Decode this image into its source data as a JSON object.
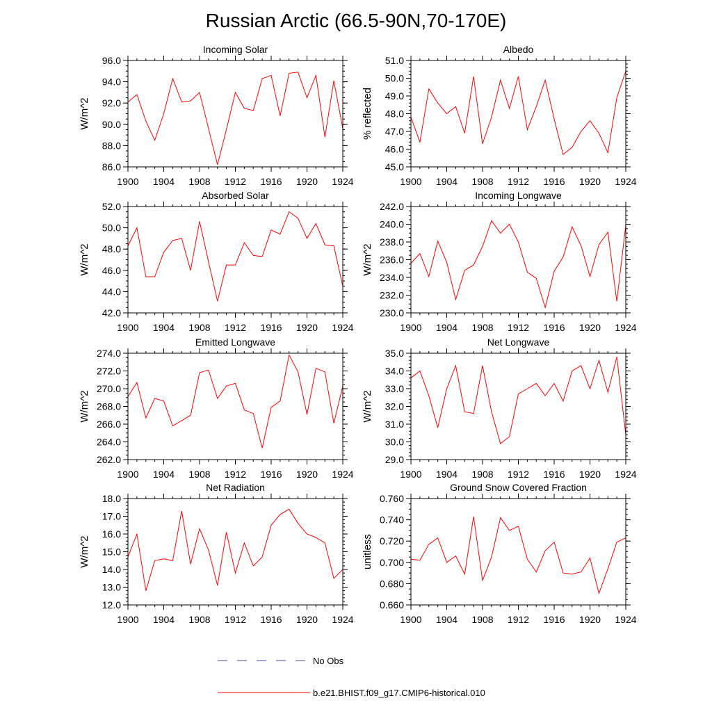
{
  "title": "Russian Arctic (66.5-90N,70-170E)",
  "legend": {
    "no_obs_label": "No Obs",
    "model_label": "b.e21.BHIST.f09_g17.CMIP6-historical.010",
    "model_color": "#ff0000",
    "obs_color": "#4a4aa8"
  },
  "chart_data": [
    {
      "type": "line",
      "title": "Incoming Solar",
      "xlabel": "",
      "ylabel": "W/m^2",
      "xlim": [
        1900,
        1924
      ],
      "ylim": [
        86.0,
        96.0
      ],
      "decimals": 1,
      "yticks": [
        86.0,
        88.0,
        90.0,
        92.0,
        94.0,
        96.0
      ],
      "yminor": 0.5,
      "xticks": [
        1900,
        1904,
        1908,
        1912,
        1916,
        1920,
        1924
      ],
      "x": [
        1900,
        1901,
        1902,
        1903,
        1904,
        1905,
        1906,
        1907,
        1908,
        1909,
        1910,
        1911,
        1912,
        1913,
        1914,
        1915,
        1916,
        1917,
        1918,
        1919,
        1920,
        1921,
        1922,
        1923,
        1924
      ],
      "series": [
        {
          "color": "#ff0000",
          "values": [
            92.1,
            92.8,
            90.3,
            88.5,
            91.0,
            94.3,
            92.1,
            92.2,
            93.0,
            89.6,
            86.2,
            89.5,
            93.0,
            91.5,
            91.3,
            94.3,
            94.6,
            90.8,
            94.8,
            94.9,
            92.5,
            94.6,
            88.8,
            94.1,
            89.6
          ]
        }
      ]
    },
    {
      "type": "line",
      "title": "Albedo",
      "xlabel": "",
      "ylabel": "% reflected",
      "xlim": [
        1900,
        1924
      ],
      "ylim": [
        45.0,
        51.0
      ],
      "decimals": 1,
      "yticks": [
        45.0,
        46.0,
        47.0,
        48.0,
        49.0,
        50.0,
        51.0
      ],
      "yminor": 0.2,
      "xticks": [
        1900,
        1904,
        1908,
        1912,
        1916,
        1920,
        1924
      ],
      "x": [
        1900,
        1901,
        1902,
        1903,
        1904,
        1905,
        1906,
        1907,
        1908,
        1909,
        1910,
        1911,
        1912,
        1913,
        1914,
        1915,
        1916,
        1917,
        1918,
        1919,
        1920,
        1921,
        1922,
        1923,
        1924
      ],
      "series": [
        {
          "color": "#ff0000",
          "values": [
            47.8,
            46.4,
            49.4,
            48.6,
            48.0,
            48.4,
            46.9,
            50.1,
            46.3,
            47.8,
            49.9,
            48.3,
            50.1,
            47.1,
            48.4,
            49.9,
            47.7,
            45.7,
            46.1,
            47.0,
            47.6,
            46.9,
            45.8,
            48.9,
            50.4
          ]
        }
      ]
    },
    {
      "type": "line",
      "title": "Absorbed Solar",
      "xlabel": "",
      "ylabel": "W/m^2",
      "xlim": [
        1900,
        1924
      ],
      "ylim": [
        42.0,
        52.0
      ],
      "decimals": 1,
      "yticks": [
        42.0,
        44.0,
        46.0,
        48.0,
        50.0,
        52.0
      ],
      "yminor": 0.5,
      "xticks": [
        1900,
        1904,
        1908,
        1912,
        1916,
        1920,
        1924
      ],
      "x": [
        1900,
        1901,
        1902,
        1903,
        1904,
        1905,
        1906,
        1907,
        1908,
        1909,
        1910,
        1911,
        1912,
        1913,
        1914,
        1915,
        1916,
        1917,
        1918,
        1919,
        1920,
        1921,
        1922,
        1923,
        1924
      ],
      "series": [
        {
          "color": "#ff0000",
          "values": [
            48.3,
            50.0,
            45.4,
            45.4,
            47.7,
            48.8,
            49.0,
            46.0,
            50.6,
            46.8,
            43.1,
            46.5,
            46.5,
            48.6,
            47.4,
            47.3,
            49.8,
            49.4,
            51.5,
            50.9,
            49.0,
            50.4,
            48.4,
            48.3,
            44.5
          ]
        }
      ]
    },
    {
      "type": "line",
      "title": "Incoming Longwave",
      "xlabel": "",
      "ylabel": "W/m^2",
      "xlim": [
        1900,
        1924
      ],
      "ylim": [
        230.0,
        242.0
      ],
      "decimals": 1,
      "yticks": [
        230.0,
        232.0,
        234.0,
        236.0,
        238.0,
        240.0,
        242.0
      ],
      "yminor": 0.5,
      "xticks": [
        1900,
        1904,
        1908,
        1912,
        1916,
        1920,
        1924
      ],
      "x": [
        1900,
        1901,
        1902,
        1903,
        1904,
        1905,
        1906,
        1907,
        1908,
        1909,
        1910,
        1911,
        1912,
        1913,
        1914,
        1915,
        1916,
        1917,
        1918,
        1919,
        1920,
        1921,
        1922,
        1923,
        1924
      ],
      "series": [
        {
          "color": "#ff0000",
          "values": [
            235.6,
            236.7,
            234.1,
            238.1,
            235.7,
            231.5,
            234.8,
            235.4,
            237.5,
            240.4,
            239.0,
            240.0,
            238.0,
            234.6,
            233.9,
            230.6,
            234.7,
            236.3,
            239.7,
            237.6,
            234.1,
            237.7,
            239.1,
            231.3,
            239.9
          ]
        }
      ]
    },
    {
      "type": "line",
      "title": "Emitted Longwave",
      "xlabel": "",
      "ylabel": "W/m^2",
      "xlim": [
        1900,
        1924
      ],
      "ylim": [
        262.0,
        274.0
      ],
      "decimals": 1,
      "yticks": [
        262.0,
        264.0,
        266.0,
        268.0,
        270.0,
        272.0,
        274.0
      ],
      "yminor": 0.5,
      "xticks": [
        1900,
        1904,
        1908,
        1912,
        1916,
        1920,
        1924
      ],
      "x": [
        1900,
        1901,
        1902,
        1903,
        1904,
        1905,
        1906,
        1907,
        1908,
        1909,
        1910,
        1911,
        1912,
        1913,
        1914,
        1915,
        1916,
        1917,
        1918,
        1919,
        1920,
        1921,
        1922,
        1923,
        1924
      ],
      "series": [
        {
          "color": "#ff0000",
          "values": [
            269.1,
            270.7,
            266.7,
            268.9,
            268.6,
            265.8,
            266.4,
            267.0,
            271.8,
            272.1,
            268.9,
            270.3,
            270.6,
            267.6,
            267.2,
            263.3,
            267.9,
            268.6,
            273.8,
            271.9,
            267.1,
            272.3,
            271.9,
            266.1,
            270.3
          ]
        }
      ]
    },
    {
      "type": "line",
      "title": "Net Longwave",
      "xlabel": "",
      "ylabel": "W/m^2",
      "xlim": [
        1900,
        1924
      ],
      "ylim": [
        29.0,
        35.0
      ],
      "decimals": 1,
      "yticks": [
        29.0,
        30.0,
        31.0,
        32.0,
        33.0,
        34.0,
        35.0
      ],
      "yminor": 0.2,
      "xticks": [
        1900,
        1904,
        1908,
        1912,
        1916,
        1920,
        1924
      ],
      "x": [
        1900,
        1901,
        1902,
        1903,
        1904,
        1905,
        1906,
        1907,
        1908,
        1909,
        1910,
        1911,
        1912,
        1913,
        1914,
        1915,
        1916,
        1917,
        1918,
        1919,
        1920,
        1921,
        1922,
        1923,
        1924
      ],
      "series": [
        {
          "color": "#ff0000",
          "values": [
            33.6,
            34.0,
            32.6,
            30.8,
            33.0,
            34.3,
            31.7,
            31.6,
            34.3,
            31.7,
            29.9,
            30.3,
            32.7,
            33.0,
            33.3,
            32.6,
            33.3,
            32.3,
            34.0,
            34.3,
            33.0,
            34.6,
            32.8,
            34.8,
            30.4
          ]
        }
      ]
    },
    {
      "type": "line",
      "title": "Net Radiation",
      "xlabel": "",
      "ylabel": "W/m^2",
      "xlim": [
        1900,
        1924
      ],
      "ylim": [
        12.0,
        18.0
      ],
      "decimals": 1,
      "yticks": [
        12.0,
        13.0,
        14.0,
        15.0,
        16.0,
        17.0,
        18.0
      ],
      "yminor": 0.2,
      "xticks": [
        1900,
        1904,
        1908,
        1912,
        1916,
        1920,
        1924
      ],
      "x": [
        1900,
        1901,
        1902,
        1903,
        1904,
        1905,
        1906,
        1907,
        1908,
        1909,
        1910,
        1911,
        1912,
        1913,
        1914,
        1915,
        1916,
        1917,
        1918,
        1919,
        1920,
        1921,
        1922,
        1923,
        1924
      ],
      "series": [
        {
          "color": "#ff0000",
          "values": [
            14.7,
            16.0,
            12.8,
            14.5,
            14.6,
            14.5,
            17.3,
            14.3,
            16.3,
            15.1,
            13.1,
            16.1,
            13.8,
            15.5,
            14.2,
            14.7,
            16.5,
            17.1,
            17.4,
            16.6,
            16.0,
            15.8,
            15.5,
            13.5,
            14.0
          ]
        }
      ]
    },
    {
      "type": "line",
      "title": "Ground Snow Covered Fraction",
      "xlabel": "",
      "ylabel": "unitless",
      "xlim": [
        1900,
        1924
      ],
      "ylim": [
        0.66,
        0.76
      ],
      "decimals": 3,
      "yticks": [
        0.66,
        0.68,
        0.7,
        0.72,
        0.74,
        0.76
      ],
      "yminor": 0.005,
      "xticks": [
        1900,
        1904,
        1908,
        1912,
        1916,
        1920,
        1924
      ],
      "x": [
        1900,
        1901,
        1902,
        1903,
        1904,
        1905,
        1906,
        1907,
        1908,
        1909,
        1910,
        1911,
        1912,
        1913,
        1914,
        1915,
        1916,
        1917,
        1918,
        1919,
        1920,
        1921,
        1922,
        1923,
        1924
      ],
      "series": [
        {
          "color": "#ff0000",
          "values": [
            0.703,
            0.702,
            0.717,
            0.723,
            0.7,
            0.706,
            0.689,
            0.743,
            0.683,
            0.705,
            0.742,
            0.73,
            0.734,
            0.703,
            0.691,
            0.711,
            0.719,
            0.69,
            0.689,
            0.691,
            0.704,
            0.671,
            0.694,
            0.719,
            0.723
          ]
        }
      ]
    }
  ]
}
